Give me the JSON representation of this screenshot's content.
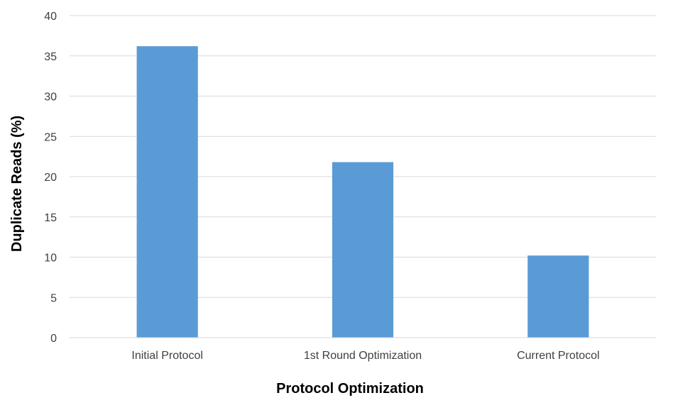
{
  "chart_data": {
    "type": "bar",
    "title": "",
    "xlabel": "Protocol Optimization",
    "ylabel": "Duplicate Reads (%)",
    "categories": [
      "Initial Protocol",
      "1st Round Optimization",
      "Current Protocol"
    ],
    "values": [
      36.2,
      21.8,
      10.2
    ],
    "ylim": [
      0,
      40
    ],
    "yticks": [
      0,
      5,
      10,
      15,
      20,
      25,
      30,
      35,
      40
    ],
    "grid": true,
    "legend": "none",
    "bar_color": "#5b9bd5"
  }
}
